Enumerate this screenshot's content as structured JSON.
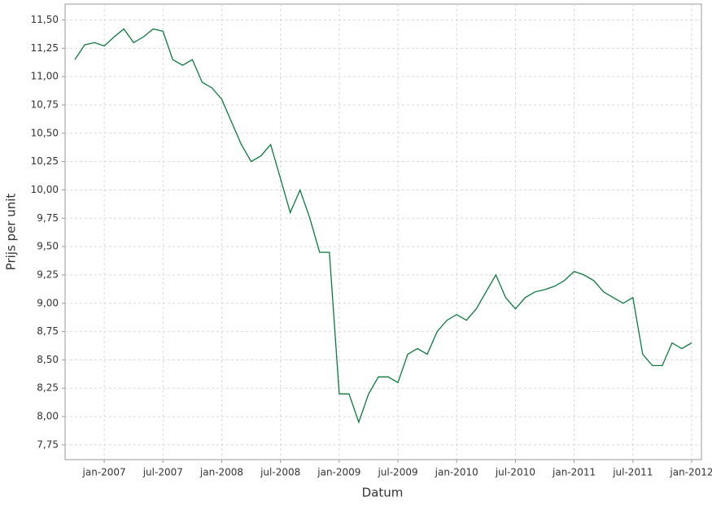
{
  "chart_data": {
    "type": "line",
    "x_label": "Datum",
    "y_label": "Prijs per unit",
    "color": "#0b7a3b",
    "grid": true,
    "x": [
      "2006-10",
      "2006-11",
      "2006-12",
      "2007-01",
      "2007-02",
      "2007-03",
      "2007-04",
      "2007-05",
      "2007-06",
      "2007-07",
      "2007-08",
      "2007-09",
      "2007-10",
      "2007-11",
      "2007-12",
      "2008-01",
      "2008-02",
      "2008-03",
      "2008-04",
      "2008-05",
      "2008-06",
      "2008-07",
      "2008-08",
      "2008-09",
      "2008-10",
      "2008-11",
      "2008-12",
      "2009-01",
      "2009-02",
      "2009-03",
      "2009-04",
      "2009-05",
      "2009-06",
      "2009-07",
      "2009-08",
      "2009-09",
      "2009-10",
      "2009-11",
      "2009-12",
      "2010-01",
      "2010-02",
      "2010-03",
      "2010-04",
      "2010-05",
      "2010-06",
      "2010-07",
      "2010-08",
      "2010-09",
      "2010-10",
      "2010-11",
      "2010-12",
      "2011-01",
      "2011-02",
      "2011-03",
      "2011-04",
      "2011-05",
      "2011-06",
      "2011-07",
      "2011-08",
      "2011-09",
      "2011-10",
      "2011-11",
      "2011-12",
      "2012-01"
    ],
    "values": [
      11.15,
      11.28,
      11.3,
      11.27,
      11.35,
      11.42,
      11.3,
      11.35,
      11.42,
      11.4,
      11.15,
      11.1,
      11.15,
      10.95,
      10.9,
      10.8,
      10.6,
      10.4,
      10.25,
      10.3,
      10.4,
      10.1,
      9.8,
      10.0,
      9.75,
      9.45,
      9.45,
      8.2,
      8.2,
      7.95,
      8.2,
      8.35,
      8.35,
      8.3,
      8.55,
      8.6,
      8.55,
      8.75,
      8.85,
      8.9,
      8.85,
      8.95,
      9.1,
      9.25,
      9.05,
      8.95,
      9.05,
      9.1,
      9.12,
      9.15,
      9.2,
      9.28,
      9.25,
      9.2,
      9.1,
      9.05,
      9.0,
      9.05,
      8.55,
      8.45,
      8.45,
      8.65,
      8.6,
      8.65
    ],
    "xlim": [
      "2006-09",
      "2012-02"
    ],
    "xticks": [
      {
        "value": "2007-01",
        "label": "jan-2007"
      },
      {
        "value": "2007-07",
        "label": "jul-2007"
      },
      {
        "value": "2008-01",
        "label": "jan-2008"
      },
      {
        "value": "2008-07",
        "label": "jul-2008"
      },
      {
        "value": "2009-01",
        "label": "jan-2009"
      },
      {
        "value": "2009-07",
        "label": "jul-2009"
      },
      {
        "value": "2010-01",
        "label": "jan-2010"
      },
      {
        "value": "2010-07",
        "label": "jul-2010"
      },
      {
        "value": "2011-01",
        "label": "jan-2011"
      },
      {
        "value": "2011-07",
        "label": "jul-2011"
      },
      {
        "value": "2012-01",
        "label": "jan-2012"
      }
    ],
    "ylim": [
      7.62,
      11.64
    ],
    "yticks": [
      {
        "value": 7.75,
        "label": "7,75"
      },
      {
        "value": 8,
        "label": "8,00"
      },
      {
        "value": 8.25,
        "label": "8,25"
      },
      {
        "value": 8.5,
        "label": "8,50"
      },
      {
        "value": 8.75,
        "label": "8,75"
      },
      {
        "value": 9,
        "label": "9,00"
      },
      {
        "value": 9.25,
        "label": "9,25"
      },
      {
        "value": 9.5,
        "label": "9,50"
      },
      {
        "value": 9.75,
        "label": "9,75"
      },
      {
        "value": 10,
        "label": "10,00"
      },
      {
        "value": 10.25,
        "label": "10,25"
      },
      {
        "value": 10.5,
        "label": "10,50"
      },
      {
        "value": 10.75,
        "label": "10,75"
      },
      {
        "value": 11,
        "label": "11,00"
      },
      {
        "value": 11.25,
        "label": "11,25"
      },
      {
        "value": 11.5,
        "label": "11,50"
      }
    ]
  }
}
